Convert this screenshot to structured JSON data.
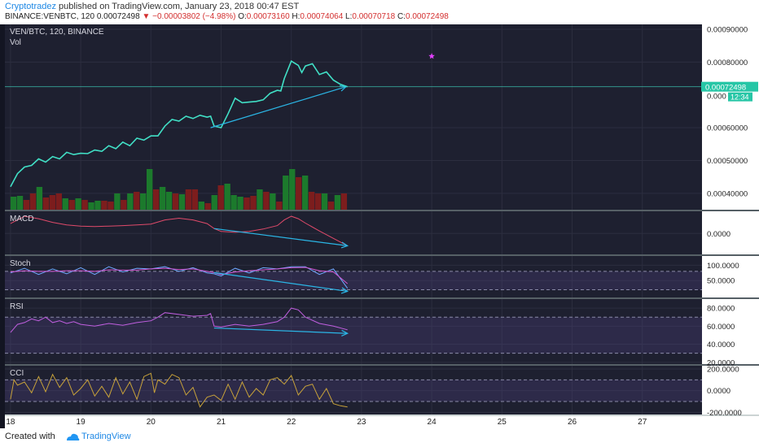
{
  "header": {
    "author": "Cryptotradez",
    "published_text": "published on TradingView.com, January 23, 2018 00:47 EST",
    "symbol": "BINANCE:VENBTC, 120",
    "last": "0.00072498",
    "change": "−0.00003802 (−4.98%)",
    "o_label": "O:",
    "o_value": "0.00073160",
    "h_label": "H:",
    "h_value": "0.00074064",
    "l_label": "L:",
    "l_value": "0.00070718",
    "c_label": "C:",
    "c_value": "0.00072498"
  },
  "footer": {
    "created_with": "Created with",
    "brand": "TradingView"
  },
  "colors": {
    "background": "#1e2030",
    "grid": "#2c2e3f",
    "price_line": "#41e0c6",
    "trendline": "#2bb6e6",
    "volume_up": "#1c7a2c",
    "volume_down": "#7c1d1d",
    "macd": "#e04a6a",
    "stoch_k": "#6fa8ff",
    "stoch_d": "#d257d2",
    "rsi": "#c15fe0",
    "cci": "#c8a23a",
    "marker": "#e040fb"
  },
  "chart_data": [
    {
      "type": "line",
      "name": "main",
      "title": "VEN/BTC, 120, BINANCE",
      "subtitle": "Vol",
      "series": [
        {
          "name": "",
          "x": [
            18.0,
            18.1,
            18.2,
            18.3,
            18.4,
            18.5,
            18.6,
            18.7,
            18.8,
            18.9,
            19.0,
            19.1,
            19.2,
            19.3,
            19.4,
            19.5,
            19.6,
            19.7,
            19.8,
            19.9,
            20.0,
            20.1,
            20.2,
            20.3,
            20.4,
            20.5,
            20.6,
            20.7,
            20.8,
            20.85,
            20.9,
            21.0,
            21.1,
            21.2,
            21.3,
            21.4,
            21.5,
            21.6,
            21.7,
            21.8,
            21.85,
            21.9,
            22.0,
            22.1,
            22.15,
            22.2,
            22.3,
            22.4,
            22.5,
            22.6,
            22.7,
            22.8
          ],
          "values": [
            0.00042,
            0.00046,
            0.00048,
            0.000485,
            0.000505,
            0.000495,
            0.000512,
            0.000505,
            0.000525,
            0.000518,
            0.000522,
            0.000521,
            0.000532,
            0.000528,
            0.000545,
            0.000536,
            0.000556,
            0.000545,
            0.000568,
            0.000562,
            0.000575,
            0.000575,
            0.000605,
            0.000625,
            0.00062,
            0.000635,
            0.000628,
            0.000638,
            0.000632,
            0.000635,
            0.000605,
            0.0006,
            0.000643,
            0.00069,
            0.000676,
            0.000678,
            0.00068,
            0.000685,
            0.000705,
            0.000714,
            0.000712,
            0.00075,
            0.000803,
            0.00079,
            0.000768,
            0.000788,
            0.000795,
            0.000762,
            0.00077,
            0.000745,
            0.000732,
            0.00072498
          ]
        }
      ],
      "volume": {
        "up": [
          1,
          1,
          0,
          0,
          1,
          0,
          0,
          0,
          1,
          0,
          1,
          0,
          1,
          1,
          0,
          0,
          1,
          0,
          1,
          0,
          1,
          1,
          0,
          1,
          1,
          0,
          1,
          0,
          0,
          1,
          0,
          1,
          0,
          1,
          1,
          1,
          0,
          0,
          1,
          0,
          1,
          0,
          1,
          1,
          0,
          1,
          0,
          0,
          1,
          0,
          1,
          0
        ],
        "values": [
          16,
          17,
          12,
          20,
          28,
          15,
          18,
          20,
          14,
          12,
          14,
          12,
          9,
          11,
          11,
          10,
          20,
          12,
          20,
          22,
          20,
          50,
          25,
          28,
          22,
          20,
          19,
          25,
          25,
          10,
          8,
          18,
          30,
          32,
          18,
          16,
          15,
          17,
          25,
          22,
          20,
          10,
          42,
          50,
          40,
          42,
          22,
          20,
          20,
          10,
          18,
          20
        ]
      },
      "trendline": {
        "from": [
          20.85,
          0.0006
        ],
        "to": [
          22.78,
          0.00072498
        ]
      },
      "marker": {
        "x": 24.0,
        "y": 0.000818,
        "shape": "star"
      },
      "ylim": [
        0.00035,
        0.000915
      ],
      "yticks": [
        "0.00090000",
        "0.00080000",
        "0.00060000",
        "0.00050000",
        "0.00040000"
      ],
      "ytick_values": [
        0.0009,
        0.0008,
        0.0006,
        0.0005,
        0.0004
      ],
      "last_label": "0.00072498",
      "overlap_label": "0.000",
      "countdown": "12:34"
    },
    {
      "type": "line",
      "name": "macd",
      "title": "MACD",
      "series": [
        {
          "name": "",
          "x": [
            18.0,
            18.2,
            18.4,
            18.6,
            18.8,
            19.0,
            19.2,
            19.4,
            19.6,
            19.8,
            20.0,
            20.2,
            20.4,
            20.6,
            20.8,
            20.9,
            21.0,
            21.2,
            21.4,
            21.6,
            21.8,
            21.9,
            22.0,
            22.1,
            22.2,
            22.4,
            22.6,
            22.8
          ],
          "values": [
            0.4,
            0.7,
            0.6,
            0.45,
            0.35,
            0.3,
            0.28,
            0.3,
            0.32,
            0.35,
            0.38,
            0.55,
            0.62,
            0.55,
            0.4,
            0.2,
            0.08,
            0.05,
            0.08,
            0.18,
            0.32,
            0.55,
            0.7,
            0.6,
            0.42,
            0.1,
            -0.2,
            -0.5
          ]
        }
      ],
      "trendline": {
        "from": [
          20.9,
          0.2
        ],
        "to": [
          22.8,
          -0.5
        ]
      },
      "ylim": [
        -0.85,
        0.9
      ],
      "yticks": [
        "0.0000"
      ],
      "ytick_values": [
        0.0
      ]
    },
    {
      "type": "line",
      "name": "stoch",
      "title": "Stoch",
      "band": [
        20,
        80
      ],
      "series": [
        {
          "name": "",
          "x": [
            18.0,
            18.2,
            18.4,
            18.6,
            18.8,
            19.0,
            19.2,
            19.4,
            19.6,
            19.8,
            20.0,
            20.2,
            20.4,
            20.6,
            20.8,
            20.9,
            21.0,
            21.2,
            21.4,
            21.6,
            21.8,
            22.0,
            22.2,
            22.4,
            22.6,
            22.8
          ],
          "values": [
            75,
            90,
            70,
            88,
            72,
            92,
            70,
            95,
            78,
            90,
            88,
            95,
            80,
            92,
            75,
            72,
            65,
            90,
            75,
            92,
            88,
            95,
            95,
            70,
            88,
            25
          ]
        },
        {
          "name": "",
          "x": [
            18.0,
            18.2,
            18.4,
            18.6,
            18.8,
            19.0,
            19.2,
            19.4,
            19.6,
            19.8,
            20.0,
            20.2,
            20.4,
            20.6,
            20.8,
            20.9,
            21.0,
            21.2,
            21.4,
            21.6,
            21.8,
            22.0,
            22.2,
            22.4,
            22.6,
            22.8
          ],
          "values": [
            78,
            82,
            80,
            80,
            82,
            82,
            80,
            85,
            84,
            84,
            88,
            90,
            86,
            88,
            80,
            76,
            70,
            78,
            82,
            85,
            88,
            92,
            93,
            82,
            78,
            40
          ]
        }
      ],
      "trendline": {
        "from": [
          20.9,
          76
        ],
        "to": [
          22.8,
          15
        ]
      },
      "ylim": [
        -5,
        130
      ],
      "yticks": [
        "100.0000",
        "50.0000"
      ],
      "ytick_values": [
        100,
        50
      ]
    },
    {
      "type": "line",
      "name": "rsi",
      "title": "RSI",
      "band": [
        30,
        70
      ],
      "series": [
        {
          "name": "",
          "x": [
            18.0,
            18.1,
            18.2,
            18.3,
            18.4,
            18.5,
            18.6,
            18.7,
            18.8,
            18.9,
            19.0,
            19.2,
            19.4,
            19.6,
            19.8,
            20.0,
            20.1,
            20.2,
            20.4,
            20.6,
            20.8,
            20.85,
            20.9,
            21.0,
            21.2,
            21.4,
            21.6,
            21.8,
            21.9,
            22.0,
            22.1,
            22.2,
            22.4,
            22.6,
            22.8
          ],
          "values": [
            53,
            62,
            64,
            68,
            66,
            70,
            64,
            66,
            63,
            65,
            62,
            60,
            63,
            61,
            64,
            66,
            70,
            75,
            73,
            71,
            72,
            74,
            60,
            59,
            62,
            60,
            62,
            65,
            70,
            80,
            78,
            70,
            63,
            60,
            56
          ]
        }
      ],
      "trendline": {
        "from": [
          20.9,
          58
        ],
        "to": [
          22.8,
          52
        ]
      },
      "ylim": [
        18,
        90
      ],
      "yticks": [
        "80.0000",
        "60.0000",
        "40.0000",
        "20.0000"
      ],
      "ytick_values": [
        80,
        60,
        40,
        20
      ]
    },
    {
      "type": "line",
      "name": "cci",
      "title": "CCI",
      "band": [
        -100,
        100
      ],
      "series": [
        {
          "name": "",
          "x": [
            18.0,
            18.05,
            18.1,
            18.2,
            18.3,
            18.4,
            18.5,
            18.6,
            18.7,
            18.8,
            18.9,
            19.0,
            19.1,
            19.2,
            19.3,
            19.4,
            19.5,
            19.6,
            19.7,
            19.8,
            19.9,
            20.0,
            20.05,
            20.1,
            20.2,
            20.3,
            20.4,
            20.5,
            20.6,
            20.7,
            20.8,
            20.9,
            21.0,
            21.1,
            21.2,
            21.3,
            21.4,
            21.5,
            21.6,
            21.7,
            21.8,
            21.9,
            22.0,
            22.1,
            22.2,
            22.3,
            22.4,
            22.5,
            22.6,
            22.7,
            22.8
          ],
          "values": [
            -80,
            100,
            50,
            80,
            -20,
            130,
            -10,
            150,
            30,
            120,
            -40,
            20,
            100,
            -50,
            40,
            -60,
            120,
            -30,
            80,
            -80,
            130,
            160,
            -20,
            100,
            60,
            150,
            120,
            -40,
            30,
            -150,
            -60,
            -40,
            -90,
            60,
            -80,
            80,
            -60,
            20,
            -40,
            100,
            120,
            60,
            140,
            -40,
            40,
            60,
            -80,
            20,
            -120,
            -140,
            -150
          ]
        }
      ],
      "ylim": [
        -220,
        230
      ],
      "yticks": [
        "200.0000",
        "0.0000",
        "-200.0000"
      ],
      "ytick_values": [
        200,
        0,
        -200
      ]
    }
  ],
  "xaxis": {
    "xlim": [
      17.92,
      27.85
    ],
    "ticks": [
      "18",
      "19",
      "20",
      "21",
      "22",
      "23",
      "24",
      "25",
      "26",
      "27"
    ],
    "tick_values": [
      18,
      19,
      20,
      21,
      22,
      23,
      24,
      25,
      26,
      27
    ]
  }
}
